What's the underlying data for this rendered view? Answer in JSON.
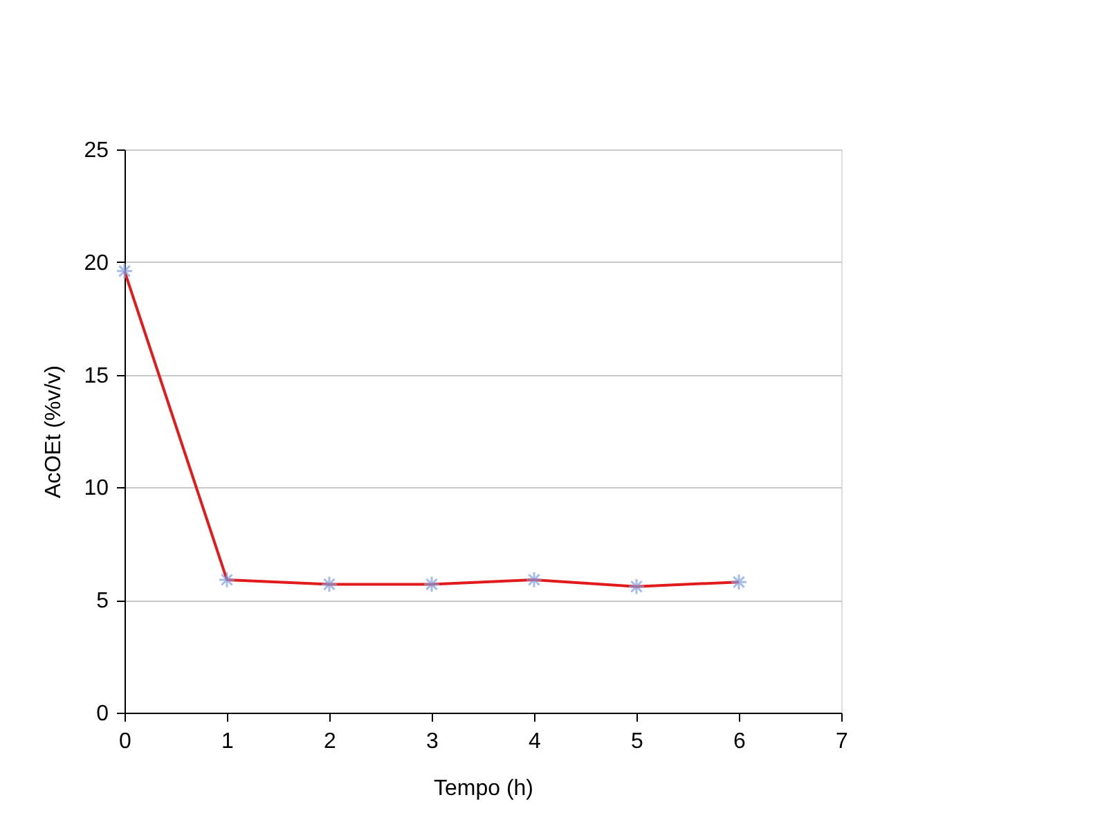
{
  "chart_data": {
    "type": "line",
    "xlabel": "Tempo (h)",
    "ylabel": "AcOEt (%v/v)",
    "x": [
      0,
      1,
      2,
      3,
      4,
      5,
      6
    ],
    "series": [
      {
        "color": "#e31a1c",
        "values": [
          19.6,
          5.9,
          5.7,
          5.7,
          5.9,
          5.6,
          5.8
        ],
        "marker": "cross"
      }
    ],
    "xlim": [
      0,
      7
    ],
    "xticks": [
      0,
      1,
      2,
      3,
      4,
      5,
      6,
      7
    ],
    "ylim": [
      0,
      25
    ],
    "yticks": [
      0,
      5,
      10,
      15,
      20,
      25
    ],
    "grid": "y"
  }
}
